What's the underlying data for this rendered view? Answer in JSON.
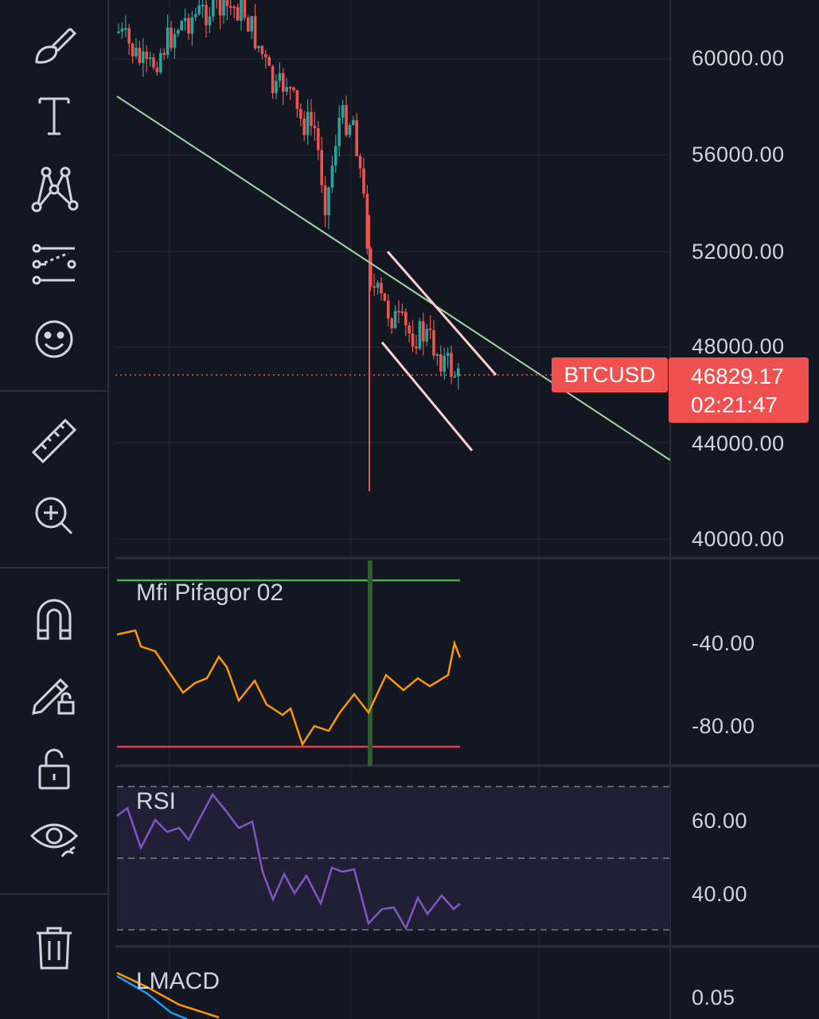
{
  "toolbar": {
    "tools": [
      {
        "id": "brush",
        "icon": "brush-icon"
      },
      {
        "id": "text",
        "icon": "text-icon"
      },
      {
        "id": "pattern",
        "icon": "pattern-icon"
      },
      {
        "id": "forecast",
        "icon": "prediction-icon"
      },
      {
        "id": "emoji",
        "icon": "smiley-icon"
      },
      {
        "id": "measure",
        "icon": "ruler-icon"
      },
      {
        "id": "zoom",
        "icon": "zoom-in-icon"
      },
      {
        "id": "magnet",
        "icon": "magnet-icon"
      },
      {
        "id": "lock-drawing",
        "icon": "pencil-lock-icon"
      },
      {
        "id": "lock-all",
        "icon": "unlock-icon"
      },
      {
        "id": "hide",
        "icon": "eye-icon"
      },
      {
        "id": "delete",
        "icon": "trash-icon"
      }
    ]
  },
  "price_axis": {
    "labels": [
      "60000.00",
      "56000.00",
      "52000.00",
      "48000.00",
      "44000.00",
      "40000.00"
    ]
  },
  "ticker": {
    "symbol": "BTCUSD",
    "last_price": "46829.17",
    "countdown": "02:21:47"
  },
  "panes": {
    "mfi": {
      "title": "Mfi Pifagor 02",
      "labels": [
        "-40.00",
        "-80.00"
      ]
    },
    "rsi": {
      "title": "RSI",
      "labels": [
        "60.00",
        "40.00"
      ]
    },
    "lmacd": {
      "title": "LMACD",
      "labels": [
        "0.05"
      ]
    }
  },
  "colors": {
    "background": "#131722",
    "bull": "#26a69a",
    "bear": "#ef5350",
    "trendline": "#a5d6a7",
    "channel": "#ffcdd2",
    "rsi": "#7e57c2",
    "mfi_up": "#4caf50",
    "mfi_down": "#ff9800",
    "price_tag": "#f0504f"
  }
}
